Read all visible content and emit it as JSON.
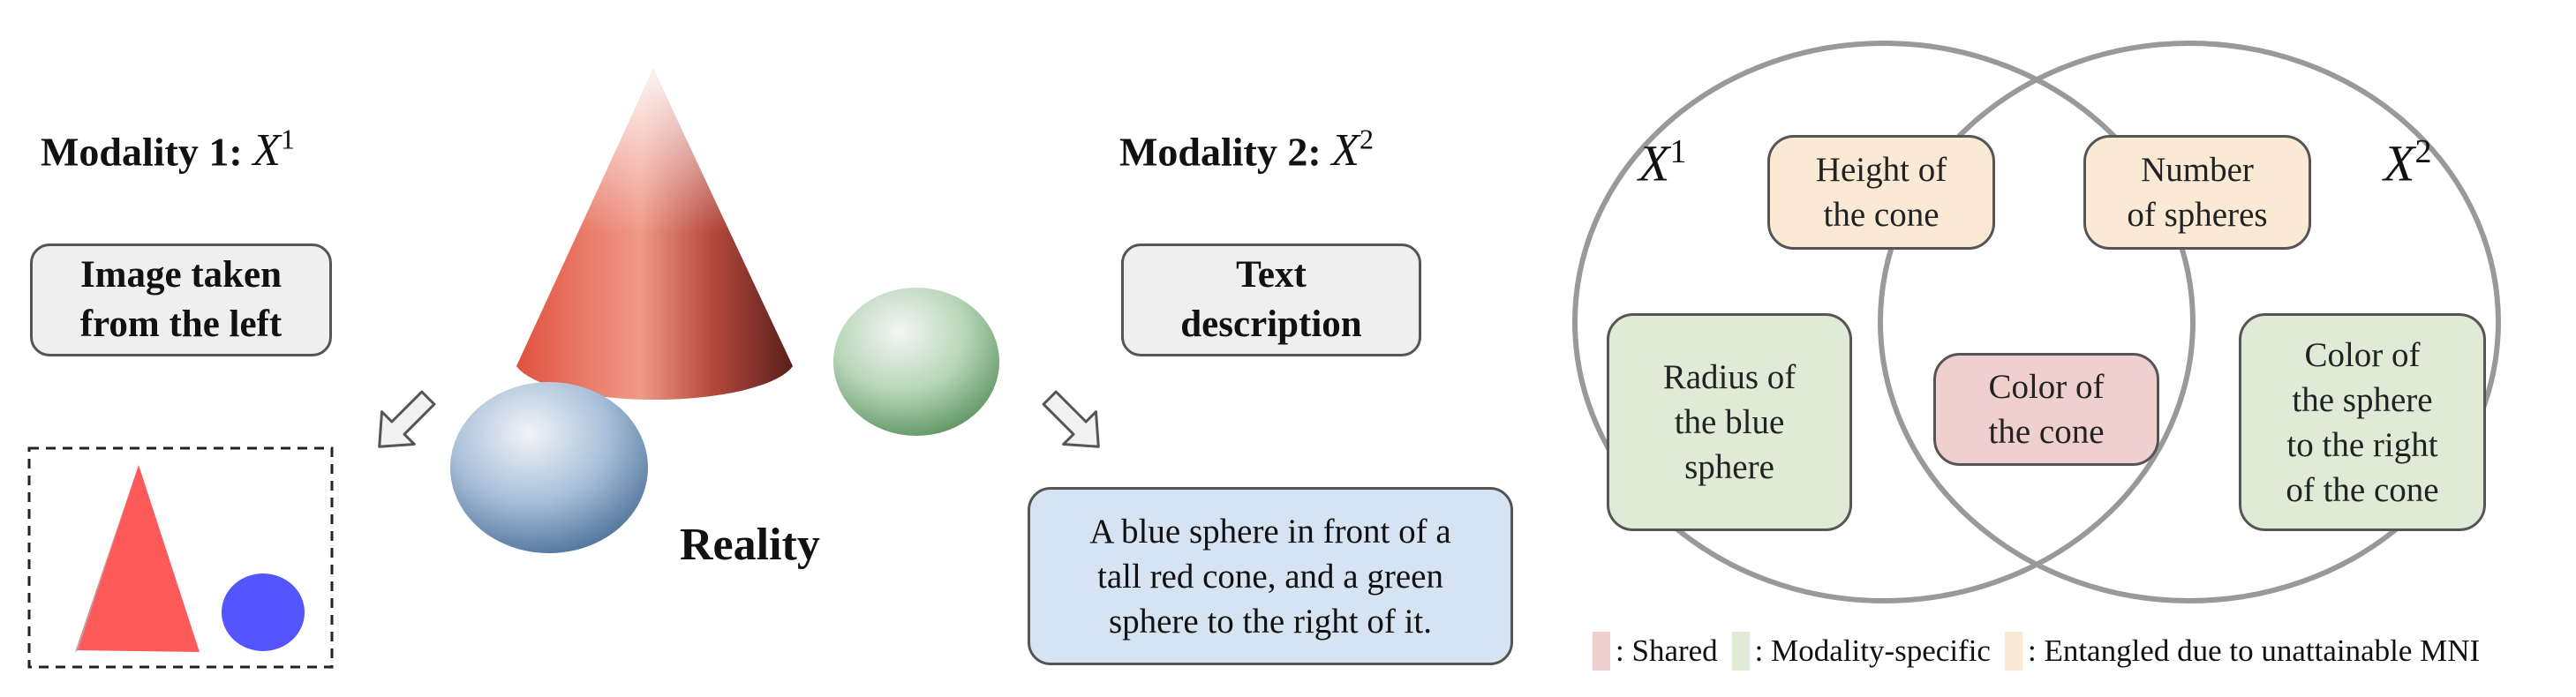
{
  "modality1": {
    "title": "Modality 1:",
    "var": "X",
    "sup": "1",
    "box_line1": "Image taken",
    "box_line2": "from the left"
  },
  "modality2": {
    "title": "Modality 2:",
    "var": "X",
    "sup": "2",
    "box_line1": "Text",
    "box_line2": "description"
  },
  "reality_label": "Reality",
  "text_description": {
    "line1": "A blue sphere in front of a",
    "line2": "tall red cone, and a green",
    "line3": "sphere to the right of it."
  },
  "venn": {
    "left_label": {
      "var": "X",
      "sup": "1"
    },
    "right_label": {
      "var": "X",
      "sup": "2"
    },
    "boxes": {
      "height_cone": [
        "Height of",
        "the cone"
      ],
      "num_spheres": [
        "Number",
        "of spheres"
      ],
      "radius_blue": [
        "Radius of",
        "the blue",
        "sphere"
      ],
      "color_cone": [
        "Color of",
        "the cone"
      ],
      "color_sphere": [
        "Color of",
        "the sphere",
        "to the right",
        "of the cone"
      ]
    }
  },
  "legend": {
    "shared": ": Shared",
    "specific": ": Modality-specific",
    "entangled": ": Entangled due to unattainable MNI"
  },
  "colors": {
    "shared": "#f0cfcf",
    "specific": "#dfebd6",
    "entangled": "#fae9d4",
    "cone_red": "#d9473a",
    "blue_sphere": "#8aa8cc",
    "green_sphere": "#9ec79f"
  }
}
